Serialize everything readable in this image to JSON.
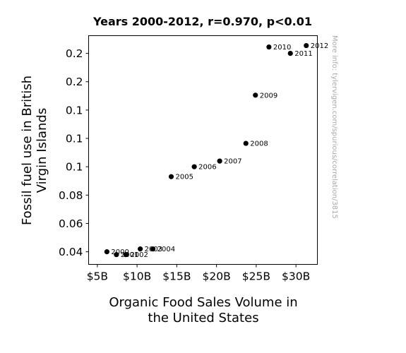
{
  "chart_data": {
    "type": "scatter",
    "title": "Years 2000-2012, r=0.970, p<0.01",
    "xlabel_lines": [
      "Organic Food Sales Volume in",
      "the United States"
    ],
    "ylabel_lines": [
      "Fossil fuel use in British",
      "Virgin Islands"
    ],
    "watermark": "More info: tylervigen.com/spurious/correlation/3815",
    "x_ticks": [
      {
        "value": 5,
        "label": "$5B"
      },
      {
        "value": 10,
        "label": "$10B"
      },
      {
        "value": 15,
        "label": "$15B"
      },
      {
        "value": 20,
        "label": "$20B"
      },
      {
        "value": 25,
        "label": "$25B"
      },
      {
        "value": 30,
        "label": "$30B"
      }
    ],
    "y_ticks": [
      {
        "value": 0.04,
        "label": "0.04"
      },
      {
        "value": 0.06,
        "label": "0.06"
      },
      {
        "value": 0.08,
        "label": "0.08"
      },
      {
        "value": 0.1,
        "label": "0.1"
      },
      {
        "value": 0.12,
        "label": "0.1"
      },
      {
        "value": 0.14,
        "label": "0.1"
      },
      {
        "value": 0.16,
        "label": "0.2"
      },
      {
        "value": 0.18,
        "label": "0.2"
      }
    ],
    "xlim": [
      3.9,
      32.7
    ],
    "ylim": [
      0.0311,
      0.1925
    ],
    "grid": false,
    "points": [
      {
        "label": "2000",
        "x": 6.2,
        "y": 0.04
      },
      {
        "label": "2001",
        "x": 7.4,
        "y": 0.038
      },
      {
        "label": "2002",
        "x": 8.6,
        "y": 0.038
      },
      {
        "label": "2003",
        "x": 10.4,
        "y": 0.042
      },
      {
        "label": "2004",
        "x": 12.0,
        "y": 0.042
      },
      {
        "label": "2005",
        "x": 14.3,
        "y": 0.093
      },
      {
        "label": "2006",
        "x": 17.2,
        "y": 0.1
      },
      {
        "label": "2007",
        "x": 20.4,
        "y": 0.104
      },
      {
        "label": "2008",
        "x": 23.7,
        "y": 0.1165
      },
      {
        "label": "2009",
        "x": 24.9,
        "y": 0.1505
      },
      {
        "label": "2010",
        "x": 26.6,
        "y": 0.1845
      },
      {
        "label": "2011",
        "x": 29.3,
        "y": 0.18
      },
      {
        "label": "2012",
        "x": 31.3,
        "y": 0.1855
      }
    ]
  }
}
